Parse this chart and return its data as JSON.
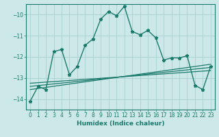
{
  "main_x": [
    0,
    1,
    2,
    3,
    4,
    5,
    6,
    7,
    8,
    9,
    10,
    11,
    12,
    13,
    14,
    15,
    16,
    17,
    18,
    19,
    20,
    21,
    22,
    23
  ],
  "main_y": [
    -14.1,
    -13.4,
    -13.55,
    -11.75,
    -11.65,
    -12.85,
    -12.45,
    -11.45,
    -11.15,
    -10.2,
    -9.85,
    -10.05,
    -9.6,
    -10.8,
    -10.95,
    -10.75,
    -11.1,
    -12.15,
    -12.05,
    -12.05,
    -11.95,
    -13.35,
    -13.55,
    -12.45
  ],
  "line1_x": [
    0,
    23
  ],
  "line1_y": [
    -13.55,
    -12.35
  ],
  "line2_x": [
    0,
    23
  ],
  "line2_y": [
    -13.4,
    -12.5
  ],
  "line3_x": [
    0,
    23
  ],
  "line3_y": [
    -13.25,
    -12.65
  ],
  "main_color": "#1a7a6a",
  "reg_color": "#1a7a6a",
  "bg_color": "#cde8e8",
  "grid_color": "#a8d0d0",
  "xlabel": "Humidex (Indice chaleur)",
  "xlim": [
    -0.5,
    23.5
  ],
  "ylim": [
    -14.5,
    -9.5
  ],
  "yticks": [
    -14,
    -13,
    -12,
    -11,
    -10
  ],
  "xticks": [
    0,
    1,
    2,
    3,
    4,
    5,
    6,
    7,
    8,
    9,
    10,
    11,
    12,
    13,
    14,
    15,
    16,
    17,
    18,
    19,
    20,
    21,
    22,
    23
  ]
}
